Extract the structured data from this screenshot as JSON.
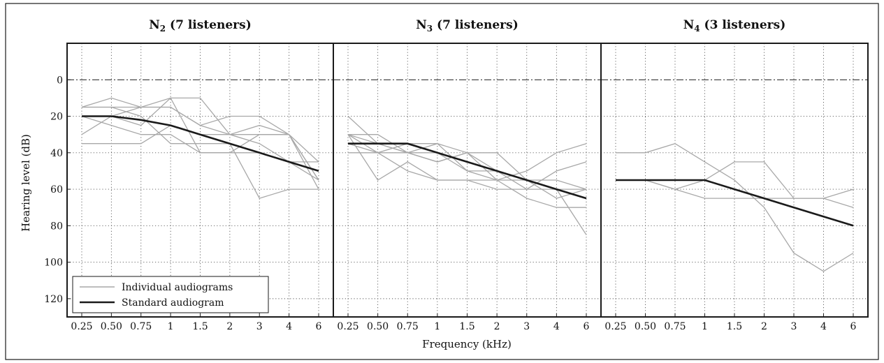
{
  "chart_data": {
    "type": "line",
    "xlabel": "Frequency (kHz)",
    "ylabel": "Hearing level (dB)",
    "x_ticks": [
      "0.25",
      "0.50",
      "0.75",
      "1",
      "1.5",
      "2",
      "3",
      "4",
      "6"
    ],
    "y_ticks": [
      "0",
      "20",
      "40",
      "60",
      "80",
      "100",
      "120"
    ],
    "ylim": [
      130,
      -20
    ],
    "y_inverted": true,
    "grid": true,
    "legend": {
      "placement": "bottom-left",
      "individual_label": "Individual audiograms",
      "standard_label": "Standard audiogram"
    },
    "colors": {
      "individual": "#a8a8a8",
      "standard": "#1a1a1a",
      "frame": "#1a1a1a"
    },
    "panels": [
      {
        "title_main": "N",
        "title_sub": "2",
        "title_rest": " (7 listeners)",
        "standard": [
          20,
          20,
          22,
          25,
          30,
          35,
          40,
          45,
          50
        ],
        "individual": [
          [
            15,
            10,
            15,
            10,
            10,
            30,
            30,
            30,
            55
          ],
          [
            30,
            20,
            15,
            15,
            25,
            30,
            25,
            30,
            45
          ],
          [
            35,
            35,
            35,
            25,
            30,
            30,
            35,
            45,
            55
          ],
          [
            15,
            15,
            20,
            35,
            35,
            35,
            65,
            60,
            60
          ],
          [
            20,
            25,
            30,
            30,
            40,
            40,
            30,
            30,
            55
          ],
          [
            20,
            20,
            25,
            10,
            40,
            40,
            40,
            45,
            45
          ],
          [
            15,
            15,
            15,
            15,
            25,
            20,
            20,
            30,
            60
          ]
        ]
      },
      {
        "title_main": "N",
        "title_sub": "3",
        "title_rest": " (7 listeners)",
        "standard": [
          35,
          35,
          35,
          40,
          45,
          50,
          55,
          60,
          65
        ],
        "individual": [
          [
            20,
            35,
            40,
            35,
            50,
            55,
            50,
            40,
            35
          ],
          [
            30,
            30,
            40,
            45,
            40,
            40,
            55,
            65,
            60
          ],
          [
            30,
            55,
            45,
            55,
            55,
            60,
            60,
            50,
            45
          ],
          [
            40,
            40,
            50,
            55,
            55,
            55,
            55,
            55,
            60
          ],
          [
            30,
            35,
            40,
            40,
            50,
            50,
            60,
            60,
            60
          ],
          [
            35,
            40,
            35,
            35,
            40,
            55,
            65,
            70,
            70
          ],
          [
            30,
            40,
            40,
            45,
            40,
            50,
            55,
            60,
            85
          ]
        ]
      },
      {
        "title_main": "N",
        "title_sub": "4",
        "title_rest": " (3 listeners)",
        "standard": [
          55,
          55,
          55,
          55,
          60,
          65,
          70,
          75,
          80
        ],
        "individual": [
          [
            40,
            40,
            35,
            45,
            55,
            70,
            95,
            105,
            95
          ],
          [
            55,
            55,
            60,
            65,
            65,
            65,
            65,
            65,
            60
          ],
          [
            55,
            55,
            60,
            55,
            45,
            45,
            65,
            65,
            70
          ]
        ]
      }
    ]
  }
}
